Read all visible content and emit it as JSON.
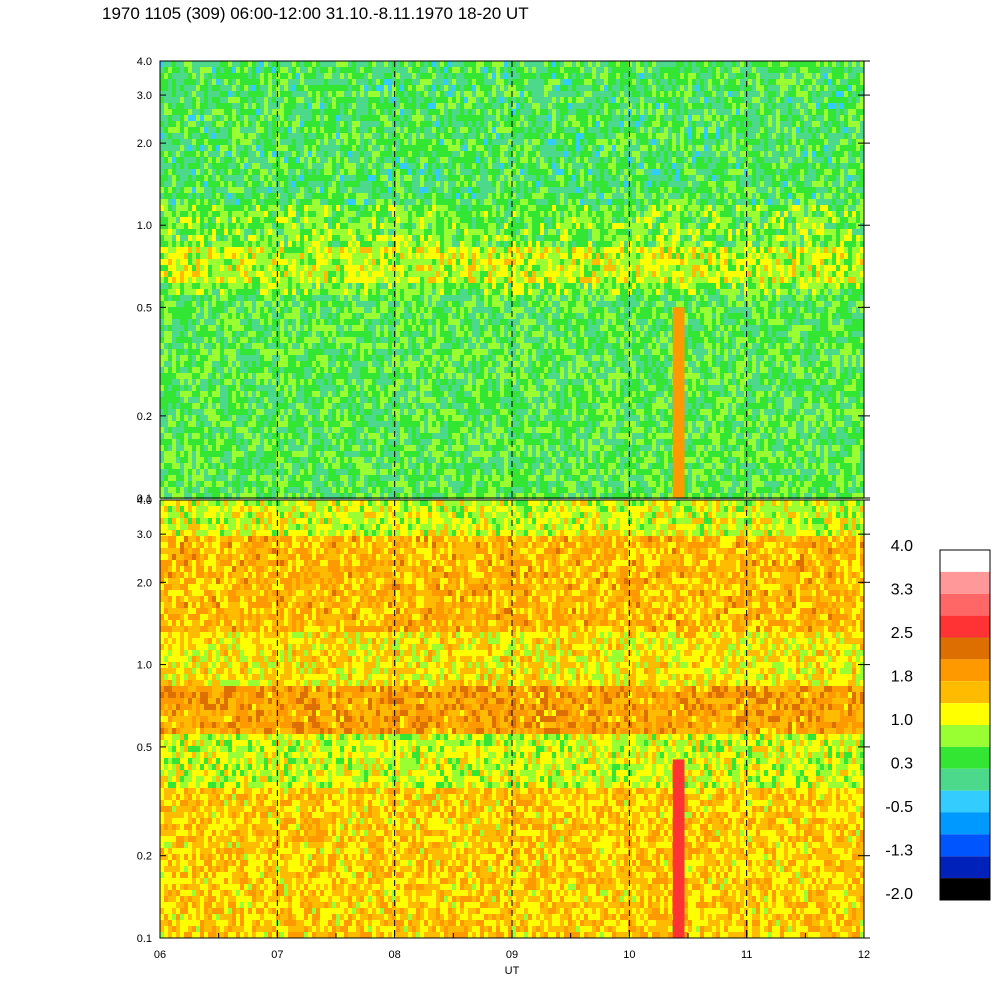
{
  "title": "1970 1105 (309) 06:00-12:00 31.10.-8.11.1970  18-20 UT",
  "chart_data": [
    {
      "type": "heatmap",
      "panel": "top",
      "x_range": [
        6,
        12
      ],
      "y_range": [
        0.1,
        4.0
      ],
      "y_scale": "log",
      "y_ticks": [
        0.1,
        0.2,
        0.5,
        1.0,
        2.0,
        3.0,
        4.0
      ],
      "y_tick_labels": [
        "0.1",
        "0.2",
        "0.5",
        "1.0",
        "2.0",
        "3.0",
        "4.0"
      ],
      "dashed_gridlines_x": [
        7,
        8,
        9,
        10,
        11
      ],
      "bands": [
        {
          "y_from": 0.1,
          "y_to": 0.55,
          "level": 0.4
        },
        {
          "y_from": 0.55,
          "y_to": 0.6,
          "level": 0.6
        },
        {
          "y_from": 0.6,
          "y_to": 0.85,
          "level": 1.0
        },
        {
          "y_from": 0.85,
          "y_to": 1.2,
          "level": 0.6
        },
        {
          "y_from": 1.2,
          "y_to": 4.0,
          "level": 0.3
        }
      ],
      "features": [
        {
          "x_from": 10.37,
          "x_to": 10.47,
          "y_from": 0.1,
          "y_to": 0.5,
          "level": 2.0
        }
      ]
    },
    {
      "type": "heatmap",
      "panel": "bottom",
      "x_range": [
        6,
        12
      ],
      "y_range": [
        0.1,
        4.0
      ],
      "y_scale": "log",
      "y_ticks": [
        0.1,
        0.2,
        0.5,
        1.0,
        2.0,
        3.0,
        4.0
      ],
      "y_tick_labels": [
        "0.1",
        "0.2",
        "0.5",
        "1.0",
        "2.0",
        "3.0",
        "4.0"
      ],
      "x_ticks": [
        6,
        7,
        8,
        9,
        10,
        11,
        12
      ],
      "x_tick_labels": [
        "06",
        "07",
        "08",
        "09",
        "10",
        "11",
        "12"
      ],
      "xlabel": "UT",
      "dashed_gridlines_x": [
        7,
        8,
        9,
        10,
        11
      ],
      "bands": [
        {
          "y_from": 0.1,
          "y_to": 0.35,
          "level": 1.5
        },
        {
          "y_from": 0.35,
          "y_to": 0.55,
          "level": 1.0
        },
        {
          "y_from": 0.55,
          "y_to": 0.85,
          "level": 1.9
        },
        {
          "y_from": 0.85,
          "y_to": 1.3,
          "level": 1.3
        },
        {
          "y_from": 1.3,
          "y_to": 3.0,
          "level": 1.7
        },
        {
          "y_from": 3.0,
          "y_to": 4.0,
          "level": 1.0
        }
      ],
      "features": [
        {
          "x_from": 10.37,
          "x_to": 10.47,
          "y_from": 0.1,
          "y_to": 0.45,
          "level": 2.6
        }
      ]
    }
  ],
  "colorbar": {
    "labels": [
      "4.0",
      "3.3",
      "2.5",
      "1.8",
      "1.0",
      "0.3",
      "-0.5",
      "-1.3",
      "-2.0"
    ],
    "colors": [
      "#ffffff",
      "#ff9999",
      "#ff6666",
      "#ff3333",
      "#dd6f00",
      "#ff9900",
      "#ffbb00",
      "#ffff00",
      "#99ff33",
      "#33e633",
      "#4dd98c",
      "#33ccff",
      "#0099ff",
      "#0055ff",
      "#0022bb",
      "#000000"
    ]
  }
}
